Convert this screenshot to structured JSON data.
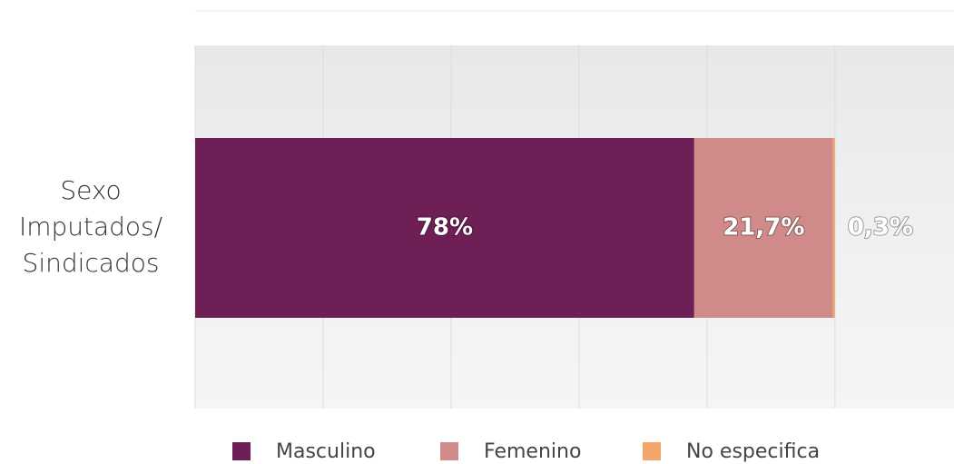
{
  "chart_data": {
    "type": "stacked-bar-horizontal",
    "categories": [
      "Sexo Imputados/ Sindicados"
    ],
    "series": [
      {
        "name": "Masculino",
        "color": "#6e1f55",
        "values": [
          78
        ],
        "value_labels": [
          "78%"
        ]
      },
      {
        "name": "Femenino",
        "color": "#d08a8a",
        "values": [
          21.7
        ],
        "value_labels": [
          "21,7%"
        ]
      },
      {
        "name": "No especifica",
        "color": "#f4a56a",
        "values": [
          0.3
        ],
        "value_labels": [
          "0,3%"
        ]
      }
    ],
    "xlim": [
      0,
      118.6
    ],
    "xticks": [
      0,
      20,
      40,
      60,
      80,
      100
    ],
    "grid": true,
    "legend": "bottom"
  }
}
